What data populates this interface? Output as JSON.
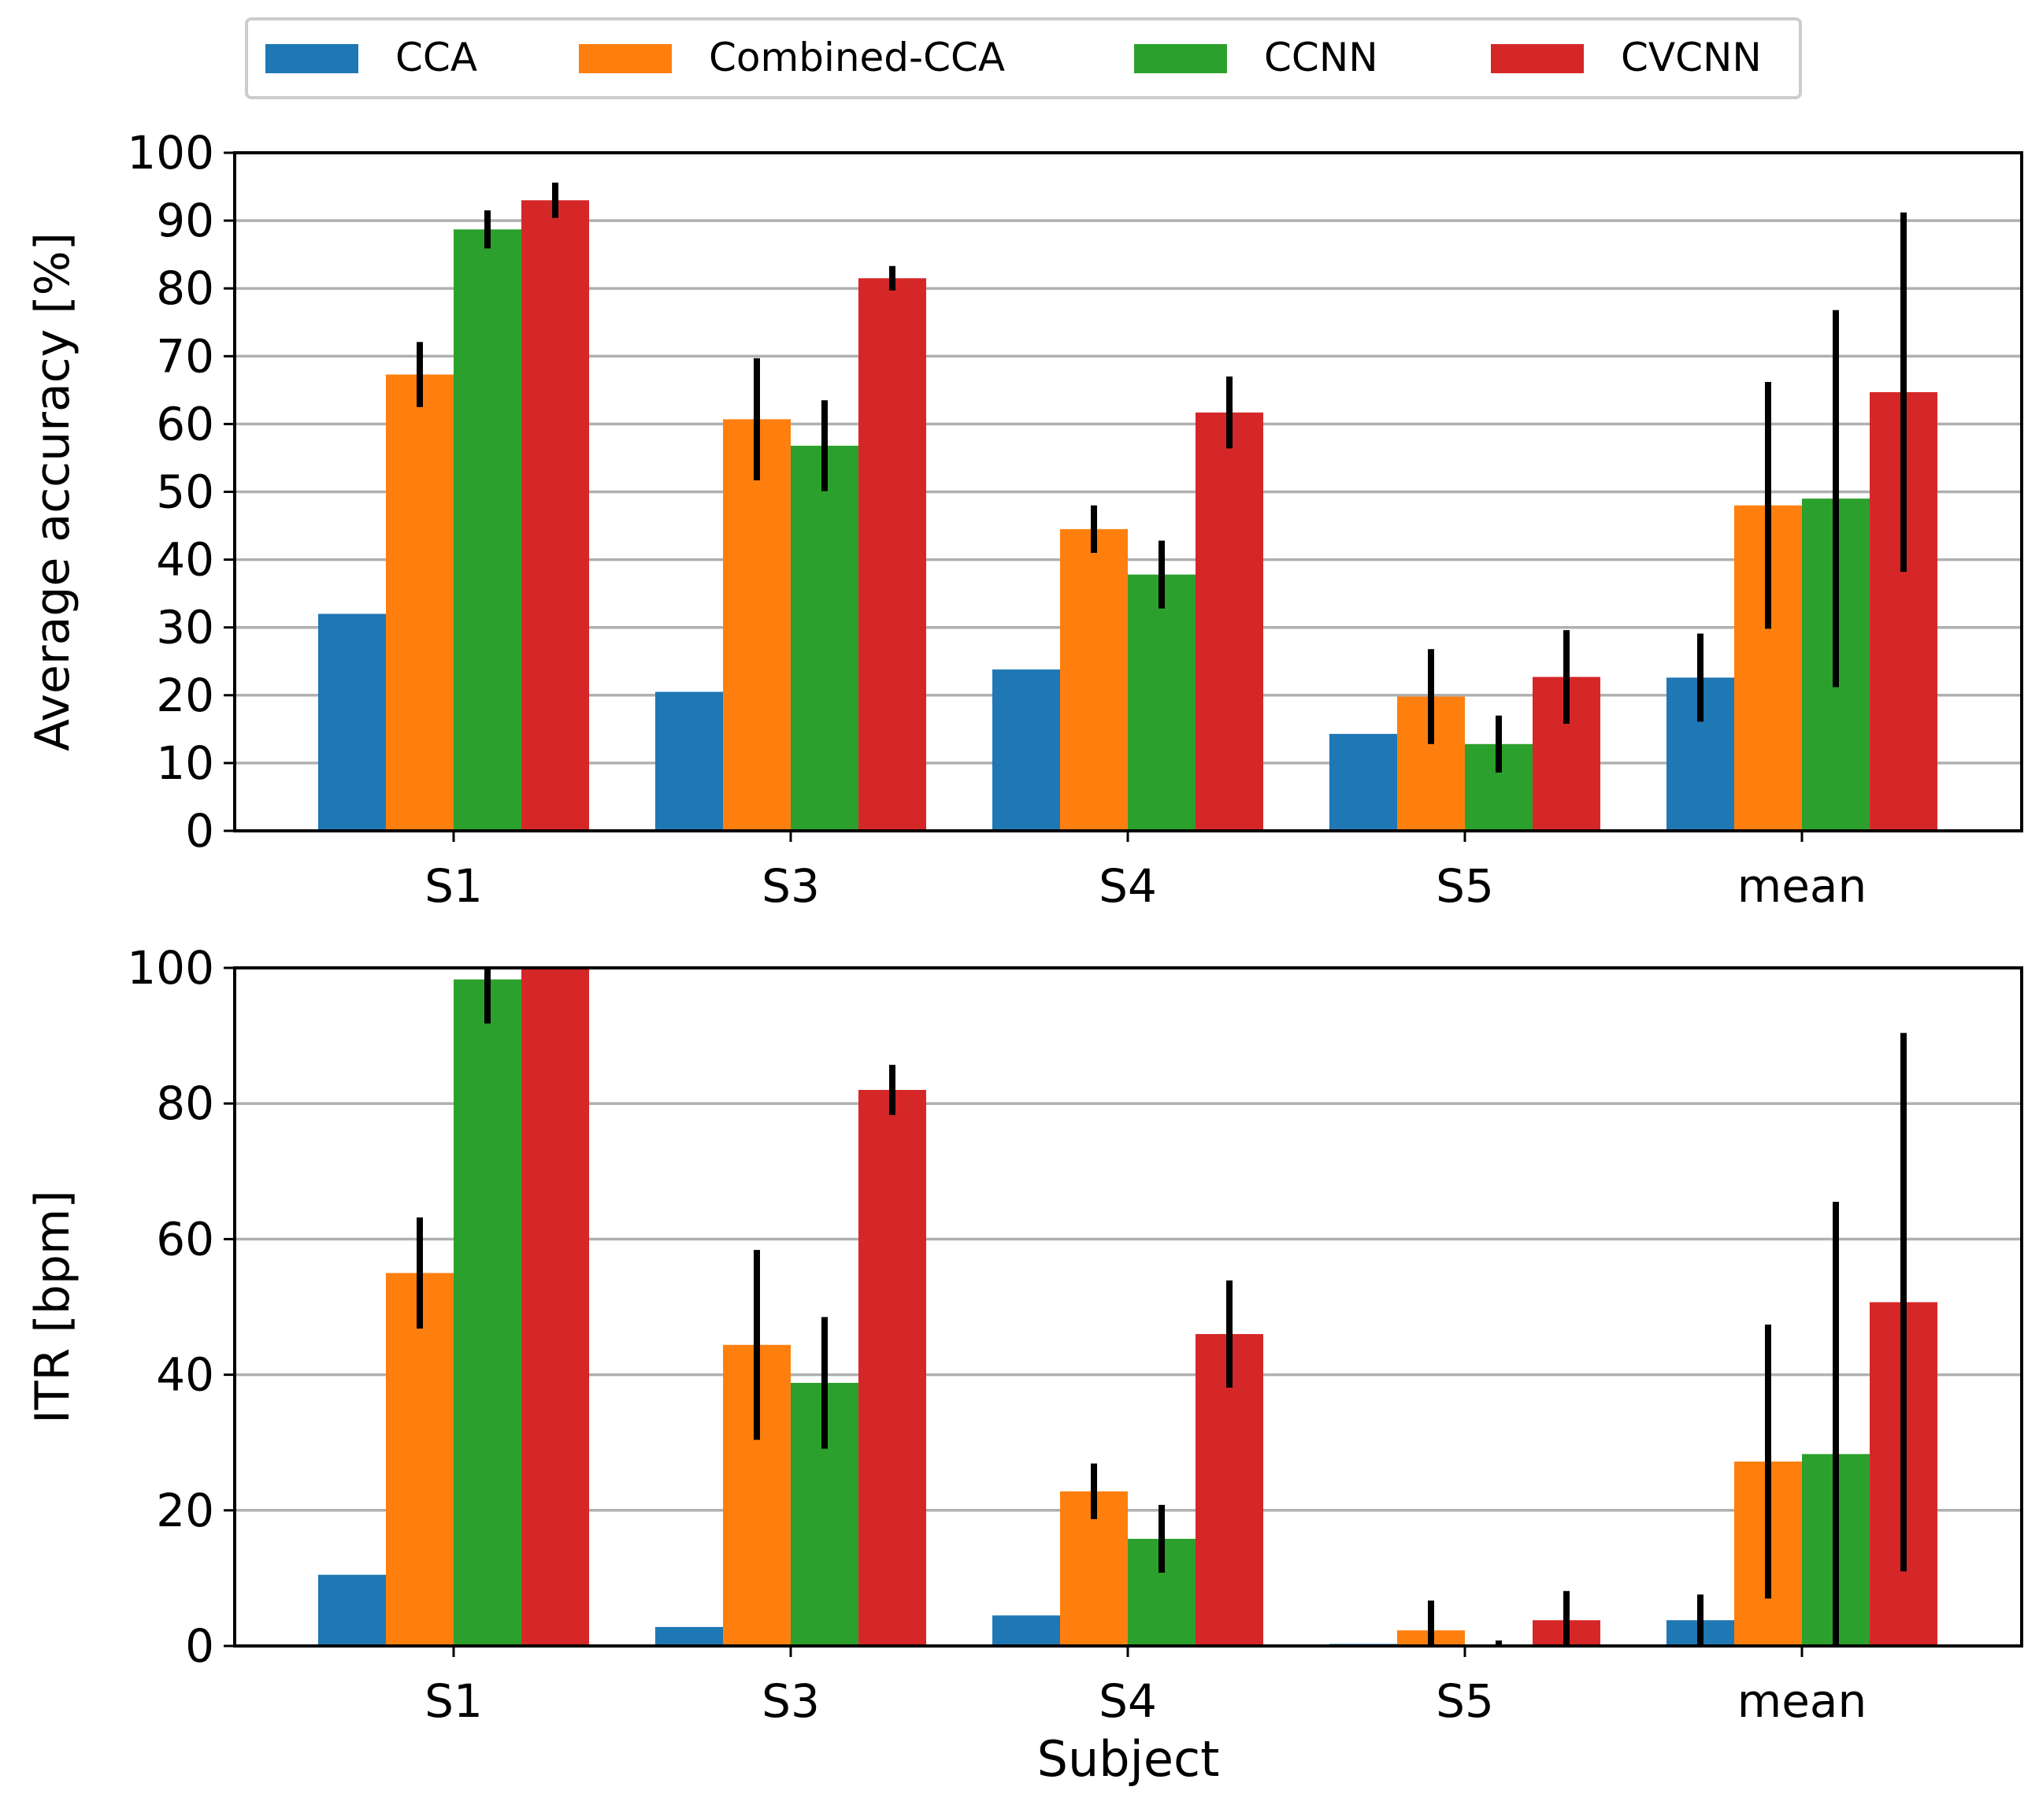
{
  "chart_data": [
    {
      "type": "bar",
      "xlabel": "",
      "ylabel": "Average accuracy [%]",
      "ylim": [
        0,
        100
      ],
      "yticks": [
        "0",
        "10",
        "20",
        "30",
        "40",
        "50",
        "60",
        "70",
        "80",
        "90",
        "100"
      ],
      "grid": "horizontal",
      "categories": [
        "S1",
        "S3",
        "S4",
        "S5",
        "mean"
      ],
      "series": [
        {
          "name": "CCA",
          "color": "#1f77b4",
          "values": [
            32,
            20.5,
            23.8,
            14.3,
            22.6
          ],
          "errors": [
            null,
            null,
            null,
            null,
            6.5
          ]
        },
        {
          "name": "Combined-CCA",
          "color": "#ff7f0e",
          "values": [
            67.3,
            60.7,
            44.5,
            19.8,
            48
          ],
          "errors": [
            4.8,
            9,
            3.5,
            7,
            18.2
          ]
        },
        {
          "name": "CCNN",
          "color": "#2ca02c",
          "values": [
            88.7,
            56.8,
            37.8,
            12.8,
            49
          ],
          "errors": [
            2.8,
            6.7,
            5,
            4.2,
            27.8
          ]
        },
        {
          "name": "CVCNN",
          "color": "#d62728",
          "values": [
            93,
            81.5,
            61.7,
            22.7,
            64.7
          ],
          "errors": [
            2.6,
            1.8,
            5.3,
            6.9,
            26.5
          ]
        }
      ]
    },
    {
      "type": "bar",
      "xlabel": "Subject",
      "ylabel": "ITR [bpm]",
      "ylim": [
        0,
        100
      ],
      "yticks": [
        "0",
        "20",
        "40",
        "60",
        "80",
        "100"
      ],
      "grid": "horizontal",
      "categories": [
        "S1",
        "S3",
        "S4",
        "S5",
        "mean"
      ],
      "series": [
        {
          "name": "CCA",
          "color": "#1f77b4",
          "values": [
            10.5,
            2.8,
            4.5,
            0.3,
            3.8
          ],
          "errors": [
            null,
            null,
            null,
            null,
            3.8
          ]
        },
        {
          "name": "Combined-CCA",
          "color": "#ff7f0e",
          "values": [
            55,
            44.4,
            22.8,
            2.3,
            27.2
          ],
          "errors": [
            8.2,
            14,
            4.1,
            4.4,
            20.2
          ]
        },
        {
          "name": "CCNN",
          "color": "#2ca02c",
          "values": [
            98.3,
            38.8,
            15.8,
            0,
            28.3
          ],
          "errors": [
            6.5,
            9.7,
            5,
            0.8,
            37.2
          ]
        },
        {
          "name": "CVCNN",
          "color": "#d62728",
          "values": [
            100,
            82,
            46,
            3.8,
            50.7
          ],
          "errors": [
            null,
            3.7,
            7.9,
            4.3,
            39.7
          ]
        }
      ]
    }
  ],
  "legend": {
    "placement": "top-center",
    "items": [
      "CCA",
      "Combined-CCA",
      "CCNN",
      "CVCNN"
    ]
  }
}
